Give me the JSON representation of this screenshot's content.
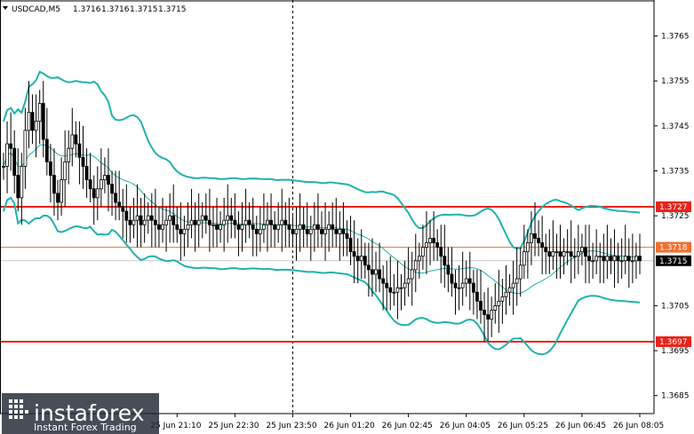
{
  "header": {
    "symbol": "USDCAD,M5",
    "open": "1.3716",
    "high": "1.3716",
    "low": "1.3715",
    "close": "1.3715"
  },
  "logo": {
    "brand": "instaforex",
    "tagline": "Instant Forex Trading"
  },
  "colors": {
    "band": "#20b2aa",
    "level_red": "#e8231a",
    "level_orange": "#f07030",
    "current_gray": "#c8c8c8",
    "candle": "#000000",
    "badge_red_bg": "#e8231a",
    "badge_price_bg": "#000000"
  },
  "chart_data": {
    "type": "candlestick",
    "ylim": [
      1.3681,
      1.3773
    ],
    "y_ticks": [
      "1.3765",
      "1.3755",
      "1.3745",
      "1.3735",
      "1.3725",
      "1.3705",
      "1.3695",
      "1.3685"
    ],
    "y_tick_values": [
      1.3765,
      1.3755,
      1.3745,
      1.3735,
      1.3725,
      1.3705,
      1.3695,
      1.3685
    ],
    "x_ticks": [
      "25 Jun 21:10",
      "25 Jun 22:30",
      "25 Jun 23:50",
      "26 Jun 01:20",
      "26 Jun 02:45",
      "26 Jun 04:05",
      "26 Jun 05:25",
      "26 Jun 06:45",
      "26 Jun 08:05"
    ],
    "x_tick_index": [
      48,
      64,
      80,
      96,
      112,
      128,
      144,
      160,
      176
    ],
    "horizontal_levels": [
      {
        "value": 1.3727,
        "label": "1.3727",
        "style": "red"
      },
      {
        "value": 1.3718,
        "label": "1.3718",
        "style": "orange"
      },
      {
        "value": 1.3697,
        "label": "1.3697",
        "style": "red"
      },
      {
        "value": 1.3715,
        "label": "1.3715",
        "style": "current"
      }
    ],
    "separator_index": 80,
    "closes": [
      1.3736,
      1.3741,
      1.374,
      1.3734,
      1.3729,
      1.3736,
      1.3744,
      1.3748,
      1.3744,
      1.3746,
      1.375,
      1.3742,
      1.3737,
      1.3734,
      1.373,
      1.3728,
      1.3733,
      1.3737,
      1.374,
      1.3743,
      1.3741,
      1.3738,
      1.3736,
      1.3733,
      1.3731,
      1.3729,
      1.3731,
      1.3733,
      1.3734,
      1.3732,
      1.373,
      1.3728,
      1.3727,
      1.3726,
      1.3724,
      1.3723,
      1.3724,
      1.3725,
      1.3723,
      1.3724,
      1.3725,
      1.3724,
      1.3723,
      1.3722,
      1.3723,
      1.3724,
      1.3725,
      1.3723,
      1.3722,
      1.3721,
      1.3722,
      1.3723,
      1.3724,
      1.3723,
      1.3724,
      1.3725,
      1.3724,
      1.3723,
      1.3723,
      1.3722,
      1.3723,
      1.3724,
      1.3725,
      1.3724,
      1.3723,
      1.3722,
      1.3723,
      1.3724,
      1.3723,
      1.3722,
      1.3721,
      1.3722,
      1.3723,
      1.3724,
      1.3723,
      1.3722,
      1.3723,
      1.3724,
      1.3723,
      1.3722,
      1.3721,
      1.3722,
      1.3723,
      1.3722,
      1.3721,
      1.3722,
      1.3723,
      1.3722,
      1.3721,
      1.3722,
      1.3723,
      1.3722,
      1.3721,
      1.3722,
      1.3721,
      1.372,
      1.3717,
      1.3716,
      1.3715,
      1.3716,
      1.3714,
      1.3713,
      1.3712,
      1.3713,
      1.3711,
      1.371,
      1.3709,
      1.3708,
      1.3708,
      1.3709,
      1.3709,
      1.371,
      1.3711,
      1.3713,
      1.3715,
      1.3716,
      1.3718,
      1.3719,
      1.372,
      1.3719,
      1.3718,
      1.3716,
      1.3714,
      1.3712,
      1.371,
      1.3709,
      1.3709,
      1.371,
      1.3711,
      1.371,
      1.3708,
      1.3706,
      1.3704,
      1.3703,
      1.3702,
      1.3704,
      1.3705,
      1.3706,
      1.3707,
      1.3708,
      1.3709,
      1.371,
      1.3711,
      1.3714,
      1.3717,
      1.3719,
      1.3721,
      1.372,
      1.3719,
      1.3718,
      1.3717,
      1.3716,
      1.3717,
      1.3717,
      1.3716,
      1.3717,
      1.3717,
      1.3716,
      1.3716,
      1.3717,
      1.3718,
      1.3716,
      1.3715,
      1.3715,
      1.3716,
      1.3716,
      1.3715,
      1.3716,
      1.3715,
      1.3716,
      1.3715,
      1.3715,
      1.3716,
      1.3715,
      1.3715,
      1.3716,
      1.3715
    ]
  }
}
